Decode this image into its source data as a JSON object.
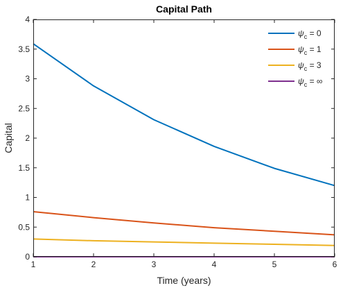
{
  "chart_data": {
    "type": "line",
    "title": "Capital Path",
    "xlabel": "Time (years)",
    "ylabel": "Capital",
    "xlim": [
      1,
      6
    ],
    "ylim": [
      0,
      4
    ],
    "xticks": [
      1,
      2,
      3,
      4,
      5,
      6
    ],
    "yticks": [
      0,
      0.5,
      1,
      1.5,
      2,
      2.5,
      3,
      3.5,
      4
    ],
    "ytick_labels": [
      "0",
      "0.5",
      "1",
      "1.5",
      "2",
      "2.5",
      "3",
      "3.5",
      "4"
    ],
    "x": [
      1,
      2,
      3,
      4,
      5,
      6
    ],
    "grid": false,
    "legend_position": "top-right",
    "series": [
      {
        "name": "ψ",
        "subscript": "c",
        "suffix": " = 0",
        "color": "#0072BD",
        "values": [
          3.59,
          2.88,
          2.31,
          1.86,
          1.49,
          1.2
        ]
      },
      {
        "name": "ψ",
        "subscript": "c",
        "suffix": " = 1",
        "color": "#D95319",
        "values": [
          0.76,
          0.66,
          0.57,
          0.49,
          0.43,
          0.37
        ]
      },
      {
        "name": "ψ",
        "subscript": "c",
        "suffix": " = 3",
        "color": "#EDB120",
        "values": [
          0.3,
          0.27,
          0.25,
          0.23,
          0.21,
          0.19
        ]
      },
      {
        "name": "ψ",
        "subscript": "c",
        "suffix": " = ∞",
        "color": "#7E2F8E",
        "values": [
          0,
          0,
          0,
          0,
          0,
          0
        ]
      }
    ]
  }
}
